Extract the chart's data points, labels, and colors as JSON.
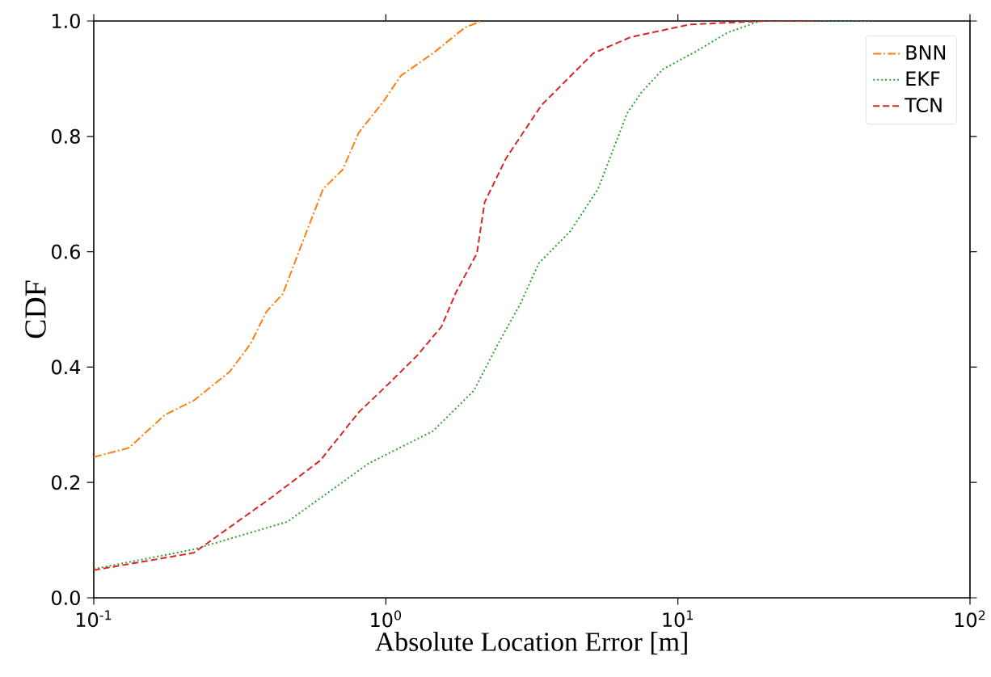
{
  "chart_data": {
    "type": "line",
    "xlabel": "Absolute Location Error [m]",
    "ylabel": "CDF",
    "log": "x",
    "xlim": [
      0.1,
      100
    ],
    "ylim": [
      0,
      1
    ],
    "xticks": [
      {
        "value": 0.1,
        "label": "10$^{-1}$"
      },
      {
        "value": 1,
        "label": "10$^{0}$"
      },
      {
        "value": 10,
        "label": "10$^{1}$"
      },
      {
        "value": 100,
        "label": "10$^{2}$"
      }
    ],
    "yticks": [
      {
        "value": 0,
        "label": "0.0"
      },
      {
        "value": 0.2,
        "label": "0.2"
      },
      {
        "value": 0.4,
        "label": "0.4"
      },
      {
        "value": 0.6,
        "label": "0.6"
      },
      {
        "value": 0.8,
        "label": "0.8"
      },
      {
        "value": 1,
        "label": "1.0"
      }
    ],
    "legend": "top right",
    "grid": false,
    "series": [
      {
        "name": "BNN",
        "color": "#ff7f0e",
        "line_style": "dashdot",
        "x": [
          0.1,
          0.132,
          0.175,
          0.22,
          0.292,
          0.344,
          0.39,
          0.444,
          0.518,
          0.61,
          0.711,
          0.809,
          0.98,
          1.125,
          1.45,
          1.87,
          2.13
        ],
        "values": [
          0.244,
          0.26,
          0.317,
          0.342,
          0.392,
          0.44,
          0.496,
          0.527,
          0.616,
          0.709,
          0.742,
          0.807,
          0.86,
          0.905,
          0.944,
          0.989,
          1.0
        ]
      },
      {
        "name": "EKF",
        "color": "#2ca02c",
        "line_style": "dotted",
        "x": [
          0.1,
          0.22,
          0.461,
          0.873,
          1.45,
          2.0,
          2.42,
          2.89,
          3.34,
          4.29,
          5.33,
          6.7,
          7.52,
          8.87,
          11.5,
          14.8,
          19.1,
          46.5
        ],
        "values": [
          0.05,
          0.084,
          0.132,
          0.233,
          0.289,
          0.359,
          0.44,
          0.51,
          0.58,
          0.636,
          0.709,
          0.84,
          0.877,
          0.916,
          0.947,
          0.98,
          1.0,
          1.0
        ]
      },
      {
        "name": "TCN",
        "color": "#d62728",
        "line_style": "dashed",
        "x": [
          0.1,
          0.22,
          0.406,
          0.596,
          0.809,
          1.017,
          1.28,
          1.55,
          1.74,
          2.05,
          2.18,
          2.58,
          3.41,
          5.13,
          6.88,
          11.0,
          19.8,
          30.0
        ],
        "values": [
          0.048,
          0.078,
          0.174,
          0.238,
          0.322,
          0.37,
          0.42,
          0.47,
          0.53,
          0.597,
          0.686,
          0.762,
          0.854,
          0.944,
          0.972,
          0.994,
          1.0,
          1.0
        ]
      }
    ]
  }
}
